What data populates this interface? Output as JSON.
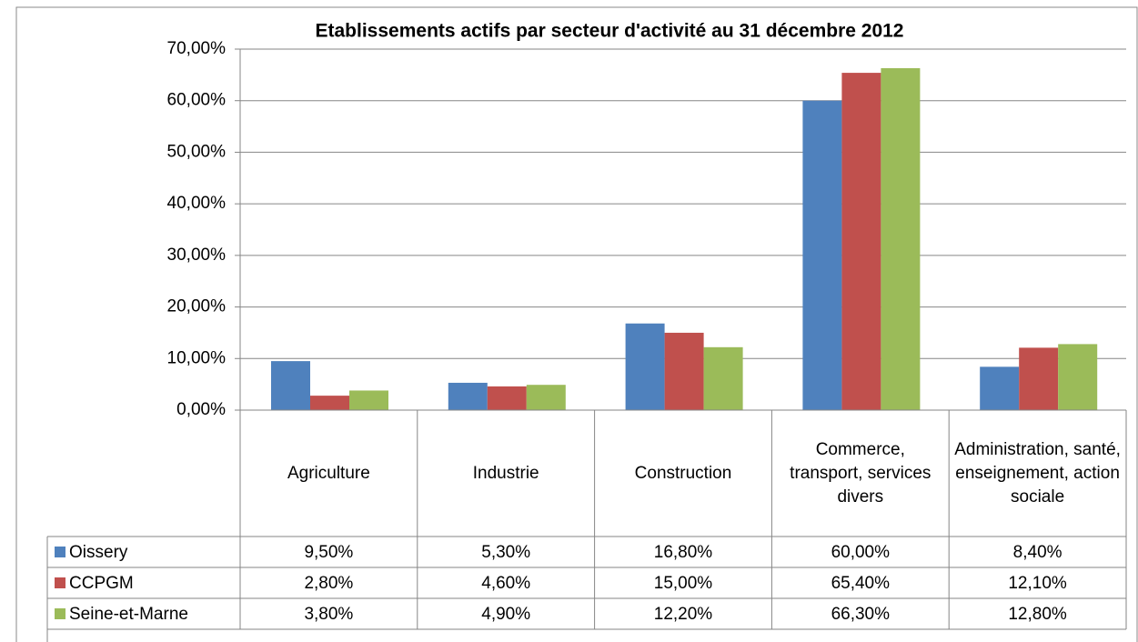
{
  "chart_data": {
    "type": "bar",
    "title": "Etablissements actifs par secteur d'activité au 31 décembre 2012",
    "categories": [
      "Agriculture",
      "Industrie",
      "Construction",
      "Commerce, transport, services divers",
      "Administration, santé, enseignement, action sociale"
    ],
    "series": [
      {
        "name": "Oissery",
        "color": "#4f81bd",
        "values": [
          9.5,
          5.3,
          16.8,
          60.0,
          8.4
        ],
        "value_labels": [
          "9,50%",
          "5,30%",
          "16,80%",
          "60,00%",
          "8,40%"
        ]
      },
      {
        "name": "CCPGM",
        "color": "#c0504d",
        "values": [
          2.8,
          4.6,
          15.0,
          65.4,
          12.1
        ],
        "value_labels": [
          "2,80%",
          "4,60%",
          "15,00%",
          "65,40%",
          "12,10%"
        ]
      },
      {
        "name": "Seine-et-Marne",
        "color": "#9bbb59",
        "values": [
          3.8,
          4.9,
          12.2,
          66.3,
          12.8
        ],
        "value_labels": [
          "3,80%",
          "4,90%",
          "12,20%",
          "66,30%",
          "12,80%"
        ]
      }
    ],
    "ylim": [
      0,
      70
    ],
    "yticks": [
      {
        "value": 0,
        "label": "0,00%"
      },
      {
        "value": 10,
        "label": "10,00%"
      },
      {
        "value": 20,
        "label": "20,00%"
      },
      {
        "value": 30,
        "label": "30,00%"
      },
      {
        "value": 40,
        "label": "40,00%"
      },
      {
        "value": 50,
        "label": "50,00%"
      },
      {
        "value": 60,
        "label": "60,00%"
      },
      {
        "value": 70,
        "label": "70,00%"
      }
    ],
    "grid": true
  }
}
